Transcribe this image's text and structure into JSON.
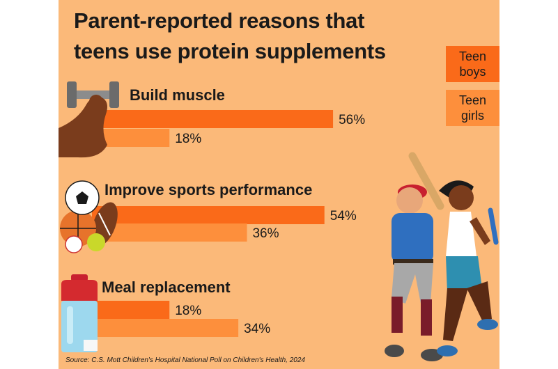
{
  "header": {
    "title_line1": "Parent-reported reasons that",
    "title_line2": "teens use protein supplements"
  },
  "legend": {
    "boys_line1": "Teen",
    "boys_line2": "boys",
    "girls_line1": "Teen",
    "girls_line2": "girls"
  },
  "colors": {
    "background": "#fbb979",
    "teen_boys": "#fa6a19",
    "teen_girls": "#fd8f3c"
  },
  "source": "Source: C.S. Mott Children's Hospital National Poll on Children's Health, 2024",
  "icons": [
    "dumbbell-flexed-arm-icon",
    "sports-balls-icon",
    "shaker-bottle-icon",
    "teen-athletes-illustration"
  ],
  "chart_data": {
    "type": "bar",
    "orientation": "horizontal",
    "title": "Parent-reported reasons that teens use protein supplements",
    "categories": [
      "Build muscle",
      "Improve sports performance",
      "Meal replacement"
    ],
    "series": [
      {
        "name": "Teen boys",
        "values": [
          56,
          54,
          18
        ],
        "labels": [
          "56%",
          "54%",
          "18%"
        ]
      },
      {
        "name": "Teen girls",
        "values": [
          18,
          36,
          34
        ],
        "labels": [
          "18%",
          "36%",
          "34%"
        ]
      }
    ],
    "value_unit": "%",
    "xlim": [
      0,
      100
    ],
    "grid": false,
    "legend_position": "right"
  }
}
